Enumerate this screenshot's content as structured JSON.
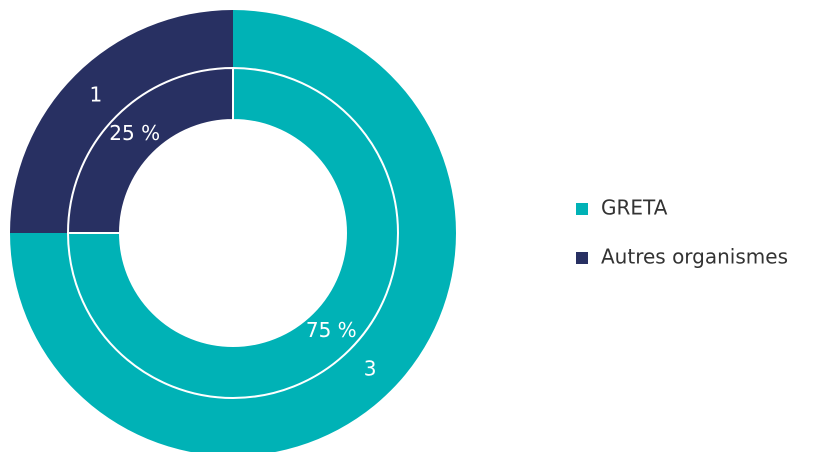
{
  "chart_data": {
    "type": "donut",
    "categories": [
      "GRETA",
      "Autres organismes"
    ],
    "colors": [
      "#00b2b6",
      "#283062"
    ],
    "series": [
      {
        "values": [
          3,
          1
        ]
      },
      {
        "values": [
          75,
          25
        ],
        "value_labels": [
          "75 %",
          "25 %"
        ]
      }
    ]
  }
}
